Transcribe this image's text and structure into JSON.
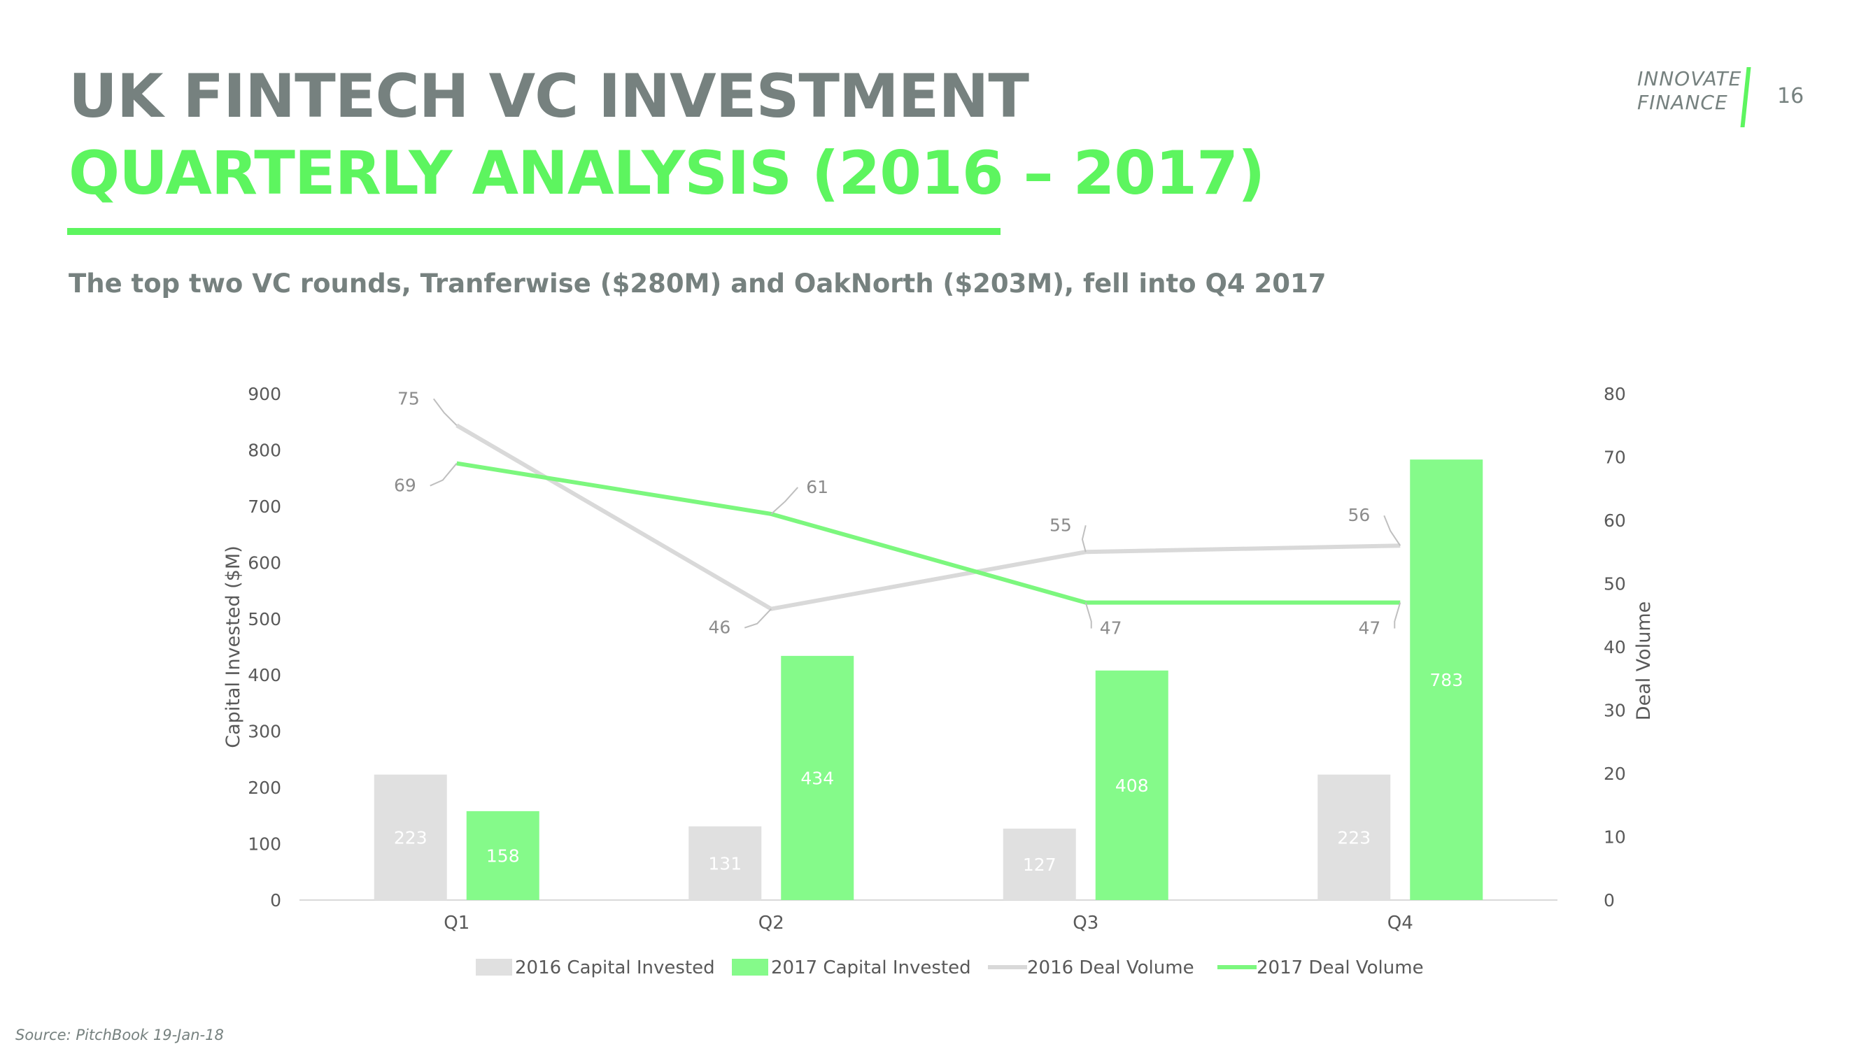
{
  "header": {
    "title": "UK FINTECH VC INVESTMENT",
    "subtitle": "QUARTERLY ANALYSIS (2016 – 2017)",
    "headline": "The top two VC rounds, Tranferwise ($280M) and OakNorth ($203M), fell into Q4 2017",
    "logo_line1": "INNOVATE",
    "logo_line2": "FINANCE",
    "page_number": "16"
  },
  "footer": {
    "source": "Source: PitchBook 19-Jan-18"
  },
  "colors": {
    "accent_green": "#5df55f",
    "bar_2017": "#85fa8a",
    "bar_2016": "#e0e0e0",
    "line_2016": "#d9d9d9",
    "line_2017": "#7cf77e",
    "text_gray": "#76817f",
    "axis_text": "#595959"
  },
  "chart_data": {
    "type": "bar",
    "categories": [
      "Q1",
      "Q2",
      "Q3",
      "Q4"
    ],
    "series": [
      {
        "name": "2016 Capital Invested",
        "type": "bar",
        "axis": "left",
        "values": [
          223,
          131,
          127,
          223
        ]
      },
      {
        "name": "2017 Capital Invested",
        "type": "bar",
        "axis": "left",
        "values": [
          158,
          434,
          408,
          783
        ]
      },
      {
        "name": "2016 Deal Volume",
        "type": "line",
        "axis": "right",
        "values": [
          75,
          46,
          55,
          56
        ]
      },
      {
        "name": "2017 Deal Volume",
        "type": "line",
        "axis": "right",
        "values": [
          69,
          61,
          47,
          47
        ]
      }
    ],
    "ylabel": "Capital Invested ($M)",
    "y2label": "Deal Volume",
    "ylim": [
      0,
      900
    ],
    "yticks": [
      0,
      100,
      200,
      300,
      400,
      500,
      600,
      700,
      800,
      900
    ],
    "y2lim": [
      0,
      80
    ],
    "y2ticks": [
      0,
      10,
      20,
      30,
      40,
      50,
      60,
      70,
      80
    ],
    "grid": false,
    "legend_position": "bottom"
  }
}
